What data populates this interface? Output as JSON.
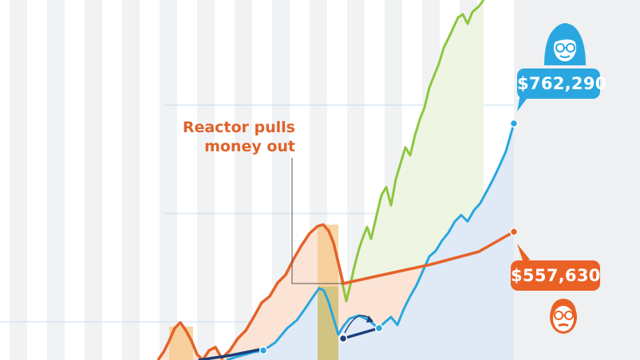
{
  "chart_data": {
    "type": "line",
    "annotation": [
      "Reactor pulls",
      "money out"
    ],
    "series": [
      {
        "role": "market-full",
        "color": "#8cc63f",
        "values": [
          [
            198,
            452
          ],
          [
            205,
            442
          ],
          [
            212,
            428
          ],
          [
            219,
            412
          ],
          [
            226,
            405
          ],
          [
            233,
            415
          ],
          [
            240,
            428
          ],
          [
            247,
            445
          ],
          [
            254,
            452
          ],
          [
            262,
            440
          ],
          [
            270,
            436
          ],
          [
            278,
            450
          ],
          [
            288,
            440
          ],
          [
            298,
            425
          ],
          [
            308,
            415
          ],
          [
            318,
            398
          ],
          [
            328,
            380
          ],
          [
            338,
            372
          ],
          [
            348,
            355
          ],
          [
            358,
            345
          ],
          [
            368,
            325
          ],
          [
            378,
            308
          ],
          [
            388,
            293
          ],
          [
            398,
            284
          ],
          [
            405,
            282
          ],
          [
            412,
            290
          ],
          [
            418,
            305
          ],
          [
            424,
            330
          ],
          [
            430,
            360
          ],
          [
            434,
            378
          ],
          [
            438,
            362
          ],
          [
            444,
            335
          ],
          [
            450,
            312
          ],
          [
            456,
            295
          ],
          [
            460,
            285
          ],
          [
            465,
            300
          ],
          [
            472,
            270
          ],
          [
            478,
            245
          ],
          [
            484,
            235
          ],
          [
            490,
            258
          ],
          [
            496,
            225
          ],
          [
            502,
            205
          ],
          [
            508,
            185
          ],
          [
            514,
            195
          ],
          [
            520,
            170
          ],
          [
            526,
            150
          ],
          [
            532,
            135
          ],
          [
            538,
            110
          ],
          [
            544,
            95
          ],
          [
            550,
            80
          ],
          [
            556,
            60
          ],
          [
            562,
            48
          ],
          [
            568,
            35
          ],
          [
            574,
            22
          ],
          [
            580,
            18
          ],
          [
            586,
            30
          ],
          [
            592,
            15
          ],
          [
            600,
            8
          ],
          [
            606,
            0
          ]
        ]
      },
      {
        "role": "reactor",
        "color": "#e5622a",
        "values": [
          [
            198,
            452
          ],
          [
            205,
            442
          ],
          [
            212,
            428
          ],
          [
            219,
            412
          ],
          [
            226,
            405
          ],
          [
            233,
            415
          ],
          [
            240,
            428
          ],
          [
            247,
            445
          ],
          [
            254,
            452
          ],
          [
            262,
            440
          ],
          [
            270,
            436
          ],
          [
            278,
            450
          ],
          [
            288,
            440
          ],
          [
            298,
            425
          ],
          [
            308,
            415
          ],
          [
            318,
            398
          ],
          [
            328,
            380
          ],
          [
            338,
            372
          ],
          [
            348,
            355
          ],
          [
            358,
            345
          ],
          [
            368,
            325
          ],
          [
            378,
            308
          ],
          [
            388,
            293
          ],
          [
            398,
            284
          ],
          [
            405,
            282
          ],
          [
            412,
            290
          ],
          [
            418,
            305
          ],
          [
            424,
            330
          ],
          [
            430,
            356
          ],
          [
            480,
            345
          ],
          [
            540,
            332
          ],
          [
            600,
            316
          ],
          [
            644,
            291
          ]
        ]
      },
      {
        "role": "investor",
        "color": "#29a6df",
        "values": [
          [
            284,
            452
          ],
          [
            300,
            447
          ],
          [
            318,
            442
          ],
          [
            330,
            440
          ],
          [
            345,
            430
          ],
          [
            360,
            412
          ],
          [
            372,
            402
          ],
          [
            382,
            388
          ],
          [
            392,
            373
          ],
          [
            400,
            362
          ],
          [
            406,
            365
          ],
          [
            412,
            380
          ],
          [
            418,
            400
          ],
          [
            424,
            420
          ],
          [
            430,
            410
          ],
          [
            438,
            400
          ],
          [
            450,
            396
          ],
          [
            462,
            402
          ],
          [
            474,
            412
          ],
          [
            482,
            405
          ],
          [
            490,
            398
          ],
          [
            498,
            408
          ],
          [
            506,
            388
          ],
          [
            514,
            372
          ],
          [
            522,
            358
          ],
          [
            530,
            340
          ],
          [
            538,
            322
          ],
          [
            546,
            315
          ],
          [
            554,
            302
          ],
          [
            562,
            292
          ],
          [
            570,
            278
          ],
          [
            578,
            270
          ],
          [
            586,
            278
          ],
          [
            594,
            264
          ],
          [
            602,
            255
          ],
          [
            610,
            240
          ],
          [
            618,
            225
          ],
          [
            626,
            208
          ],
          [
            634,
            190
          ],
          [
            644,
            155
          ]
        ]
      },
      {
        "role": "investor-gap",
        "color": "#1d3e7a",
        "values": [
          [
            250,
            452
          ],
          [
            290,
            446
          ],
          [
            330,
            438
          ]
        ]
      }
    ],
    "callouts": [
      {
        "series": "investor",
        "label": "$762,290"
      },
      {
        "series": "reactor",
        "label": "$557,630"
      }
    ]
  },
  "labels": {
    "annotation_line1": "Reactor pulls",
    "annotation_line2": "money out",
    "value_investor": "$762,290",
    "value_reactor": "$557,630"
  },
  "colors": {
    "green": "#8cc63f",
    "orange": "#e5622a",
    "blue": "#29a6df",
    "navy": "#1d3e7a",
    "stripe": "#f1f2f4",
    "gridline": "#c9dbe8"
  },
  "icons": [
    "investor-avatar-icon",
    "reactor-avatar-icon"
  ]
}
